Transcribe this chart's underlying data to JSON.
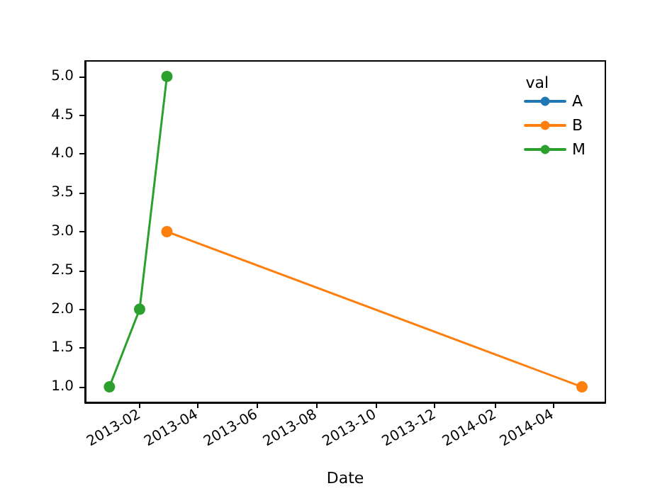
{
  "chart_data": {
    "type": "line",
    "xlabel": "Date",
    "legend_title": "val",
    "legend": "top right",
    "grid": false,
    "marker": "circle",
    "line_style": "solid",
    "xlim": [
      "2012-12-07",
      "2014-05-25"
    ],
    "xticks": [
      "2013-02",
      "2013-04",
      "2013-06",
      "2013-08",
      "2013-10",
      "2013-12",
      "2014-02",
      "2014-04"
    ],
    "ylim": [
      0.8,
      5.2
    ],
    "yticks": [
      {
        "value": 1,
        "label": "1.0"
      },
      1.5,
      {
        "value": 2,
        "label": "2.0"
      },
      2.5,
      {
        "value": 3,
        "label": "3.0"
      },
      3.5,
      {
        "value": 4,
        "label": "4.0"
      },
      4.5,
      {
        "value": 5,
        "label": "5.0"
      }
    ],
    "series": [
      {
        "name": "A",
        "color": "#1f77b4"
      },
      {
        "name": "B",
        "color": "#ff7f0e",
        "x": [
          "2013-03-01",
          "2014-05-01"
        ],
        "values": [
          3,
          1
        ]
      },
      {
        "name": "M",
        "color": "#2ca02c",
        "x": [
          "2013-01-01",
          "2013-02-01",
          "2013-03-01"
        ],
        "values": [
          1,
          2,
          5
        ]
      }
    ]
  }
}
